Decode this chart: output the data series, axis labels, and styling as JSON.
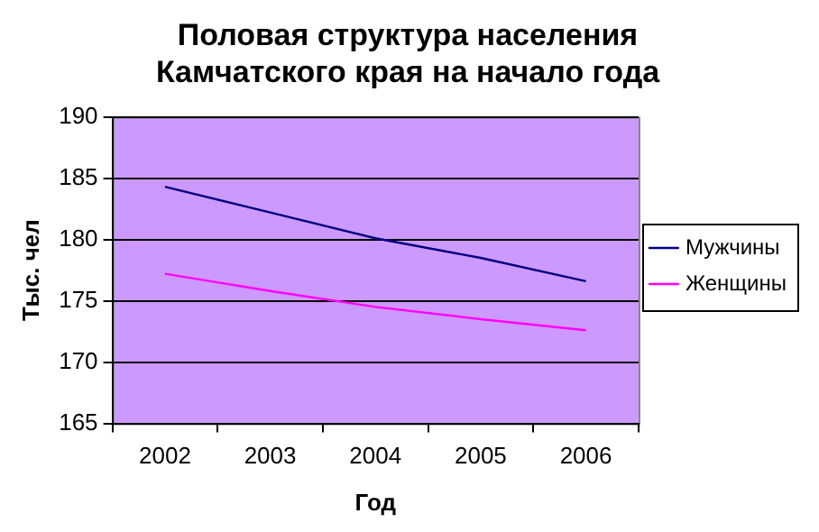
{
  "chart_data": {
    "type": "line",
    "title": "Половая структура населения Камчатского края на начало года",
    "xlabel": "Год",
    "ylabel": "Тыс. чел",
    "categories": [
      "2002",
      "2003",
      "2004",
      "2005",
      "2006"
    ],
    "series": [
      {
        "name": "Мужчины",
        "color": "#000080",
        "values": [
          184.3,
          182.2,
          180.1,
          178.5,
          176.6
        ]
      },
      {
        "name": "Женщины",
        "color": "#ff00ff",
        "values": [
          177.2,
          175.8,
          174.5,
          173.5,
          172.6
        ]
      }
    ],
    "ylim": [
      165,
      190
    ],
    "yticks": [
      165,
      170,
      175,
      180,
      185,
      190
    ],
    "grid": "y",
    "legend": "right",
    "marker": "none",
    "line_style": "solid"
  }
}
